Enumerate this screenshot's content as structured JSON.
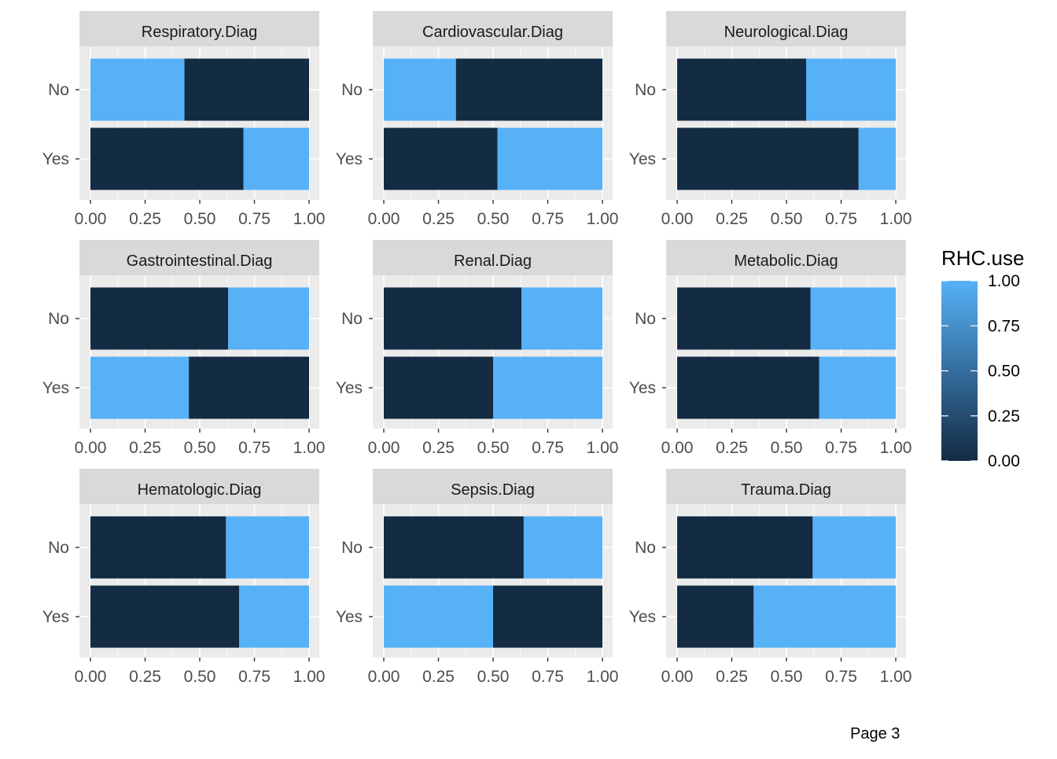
{
  "page": {
    "label": "Page 3"
  },
  "chart_data": {
    "type": "bar",
    "orientation": "horizontal",
    "stacked": true,
    "facet_layout": "3x3",
    "xlim": [
      0,
      1
    ],
    "x_ticks": [
      "0.00",
      "0.25",
      "0.50",
      "0.75",
      "1.00"
    ],
    "categories": [
      "No",
      "Yes"
    ],
    "grid": true,
    "colors": {
      "dark": "#132B43",
      "light": "#56B1F7",
      "panel_bg": "#EBEBEB",
      "strip_bg": "#D9D9D9",
      "grid": "#FFFFFF"
    },
    "legend": {
      "title": "RHC.use",
      "position": "right",
      "type": "colorbar",
      "range": [
        0,
        1
      ],
      "labels": [
        "1.00",
        "0.75",
        "0.50",
        "0.25",
        "0.00"
      ]
    },
    "panels": [
      {
        "title": "Respiratory.Diag",
        "bars": [
          {
            "category": "No",
            "segments": [
              {
                "color": "light",
                "value": 0.43
              },
              {
                "color": "dark",
                "value": 0.57
              }
            ]
          },
          {
            "category": "Yes",
            "segments": [
              {
                "color": "dark",
                "value": 0.7
              },
              {
                "color": "light",
                "value": 0.3
              }
            ]
          }
        ]
      },
      {
        "title": "Cardiovascular.Diag",
        "bars": [
          {
            "category": "No",
            "segments": [
              {
                "color": "light",
                "value": 0.33
              },
              {
                "color": "dark",
                "value": 0.67
              }
            ]
          },
          {
            "category": "Yes",
            "segments": [
              {
                "color": "dark",
                "value": 0.52
              },
              {
                "color": "light",
                "value": 0.48
              }
            ]
          }
        ]
      },
      {
        "title": "Neurological.Diag",
        "bars": [
          {
            "category": "No",
            "segments": [
              {
                "color": "dark",
                "value": 0.59
              },
              {
                "color": "light",
                "value": 0.41
              }
            ]
          },
          {
            "category": "Yes",
            "segments": [
              {
                "color": "dark",
                "value": 0.83
              },
              {
                "color": "light",
                "value": 0.17
              }
            ]
          }
        ]
      },
      {
        "title": "Gastrointestinal.Diag",
        "bars": [
          {
            "category": "No",
            "segments": [
              {
                "color": "dark",
                "value": 0.63
              },
              {
                "color": "light",
                "value": 0.37
              }
            ]
          },
          {
            "category": "Yes",
            "segments": [
              {
                "color": "light",
                "value": 0.45
              },
              {
                "color": "dark",
                "value": 0.55
              }
            ]
          }
        ]
      },
      {
        "title": "Renal.Diag",
        "bars": [
          {
            "category": "No",
            "segments": [
              {
                "color": "dark",
                "value": 0.63
              },
              {
                "color": "light",
                "value": 0.37
              }
            ]
          },
          {
            "category": "Yes",
            "segments": [
              {
                "color": "dark",
                "value": 0.5
              },
              {
                "color": "light",
                "value": 0.5
              }
            ]
          }
        ]
      },
      {
        "title": "Metabolic.Diag",
        "bars": [
          {
            "category": "No",
            "segments": [
              {
                "color": "dark",
                "value": 0.61
              },
              {
                "color": "light",
                "value": 0.39
              }
            ]
          },
          {
            "category": "Yes",
            "segments": [
              {
                "color": "dark",
                "value": 0.65
              },
              {
                "color": "light",
                "value": 0.35
              }
            ]
          }
        ]
      },
      {
        "title": "Hematologic.Diag",
        "bars": [
          {
            "category": "No",
            "segments": [
              {
                "color": "dark",
                "value": 0.62
              },
              {
                "color": "light",
                "value": 0.38
              }
            ]
          },
          {
            "category": "Yes",
            "segments": [
              {
                "color": "dark",
                "value": 0.68
              },
              {
                "color": "light",
                "value": 0.32
              }
            ]
          }
        ]
      },
      {
        "title": "Sepsis.Diag",
        "bars": [
          {
            "category": "No",
            "segments": [
              {
                "color": "dark",
                "value": 0.64
              },
              {
                "color": "light",
                "value": 0.36
              }
            ]
          },
          {
            "category": "Yes",
            "segments": [
              {
                "color": "light",
                "value": 0.5
              },
              {
                "color": "dark",
                "value": 0.5
              }
            ]
          }
        ]
      },
      {
        "title": "Trauma.Diag",
        "bars": [
          {
            "category": "No",
            "segments": [
              {
                "color": "dark",
                "value": 0.62
              },
              {
                "color": "light",
                "value": 0.38
              }
            ]
          },
          {
            "category": "Yes",
            "segments": [
              {
                "color": "dark",
                "value": 0.35
              },
              {
                "color": "light",
                "value": 0.65
              }
            ]
          }
        ]
      }
    ]
  }
}
